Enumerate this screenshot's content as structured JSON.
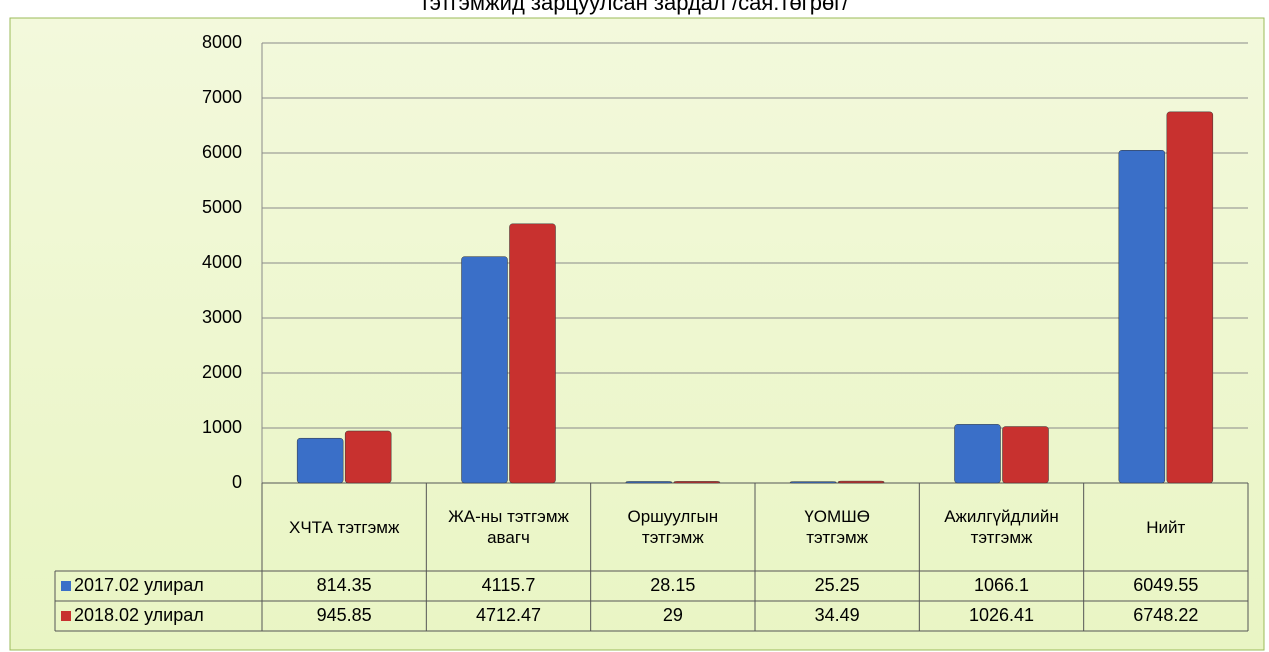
{
  "chart_data": {
    "type": "bar",
    "title": "тэтгэмжид зарцуулсан зардал /сая.төгрөг/",
    "categories": [
      "ХЧТА тэтгэмж",
      "ЖА-ны тэтгэмж авагч",
      "Оршуулгын тэтгэмж",
      "ҮОМШӨ тэтгэмж",
      "Ажилгүйдлийн тэтгэмж",
      "Нийт"
    ],
    "series": [
      {
        "name": "2017.02 улирал",
        "color": "#3a6fc8",
        "values": [
          814.35,
          4115.7,
          28.15,
          25.25,
          1066.1,
          6049.55
        ]
      },
      {
        "name": "2018.02 улирал",
        "color": "#c8312f",
        "values": [
          945.85,
          4712.47,
          29,
          34.49,
          1026.41,
          6748.22
        ]
      }
    ],
    "ylim": [
      0,
      8000
    ],
    "yticks": [
      0,
      1000,
      2000,
      3000,
      4000,
      5000,
      6000,
      7000,
      8000
    ],
    "grid": true
  }
}
